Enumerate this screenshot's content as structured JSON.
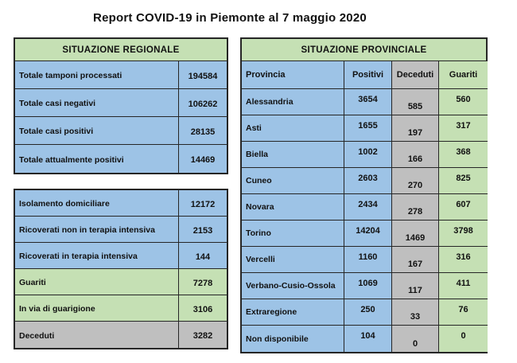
{
  "title": "Report COVID-19 in Piemonte al 7 maggio 2020",
  "colors": {
    "green": "#C5E0B4",
    "blue": "#9DC3E6",
    "gray": "#BFBFBF",
    "border": "#262626",
    "text": "#111111",
    "background": "#FFFFFF"
  },
  "regional": {
    "header": "SITUAZIONE REGIONALE",
    "rows": [
      {
        "label": "Totale tamponi processati",
        "value": "194584"
      },
      {
        "label": "Totale casi negativi",
        "value": "106262"
      },
      {
        "label": "Totale casi positivi",
        "value": "28135"
      },
      {
        "label": "Totale attualmente positivi",
        "value": "14469"
      }
    ]
  },
  "breakdown": {
    "rows": [
      {
        "label": "Isolamento domiciliare",
        "value": "12172"
      },
      {
        "label": "Ricoverati non in terapia intensiva",
        "value": "2153"
      },
      {
        "label": "Ricoverati in terapia intensiva",
        "value": "144"
      },
      {
        "label": "Guariti",
        "value": "7278"
      },
      {
        "label": "In via di guarigione",
        "value": "3106"
      },
      {
        "label": "Deceduti",
        "value": "3282"
      }
    ]
  },
  "provincial": {
    "header": "SITUAZIONE PROVINCIALE",
    "columns": {
      "provincia": "Provincia",
      "positivi": "Positivi",
      "deceduti": "Deceduti",
      "guariti": "Guariti"
    },
    "rows": [
      {
        "provincia": "Alessandria",
        "positivi": "3654",
        "deceduti": "585",
        "guariti": "560"
      },
      {
        "provincia": "Asti",
        "positivi": "1655",
        "deceduti": "197",
        "guariti": "317"
      },
      {
        "provincia": "Biella",
        "positivi": "1002",
        "deceduti": "166",
        "guariti": "368"
      },
      {
        "provincia": "Cuneo",
        "positivi": "2603",
        "deceduti": "270",
        "guariti": "825"
      },
      {
        "provincia": "Novara",
        "positivi": "2434",
        "deceduti": "278",
        "guariti": "607"
      },
      {
        "provincia": "Torino",
        "positivi": "14204",
        "deceduti": "1469",
        "guariti": "3798"
      },
      {
        "provincia": "Vercelli",
        "positivi": "1160",
        "deceduti": "167",
        "guariti": "316"
      },
      {
        "provincia": "Verbano-Cusio-Ossola",
        "positivi": "1069",
        "deceduti": "117",
        "guariti": "411"
      },
      {
        "provincia": "Extraregione",
        "positivi": "250",
        "deceduti": "33",
        "guariti": "76"
      },
      {
        "provincia": "Non disponibile",
        "positivi": "104",
        "deceduti": "0",
        "guariti": "0"
      }
    ]
  }
}
